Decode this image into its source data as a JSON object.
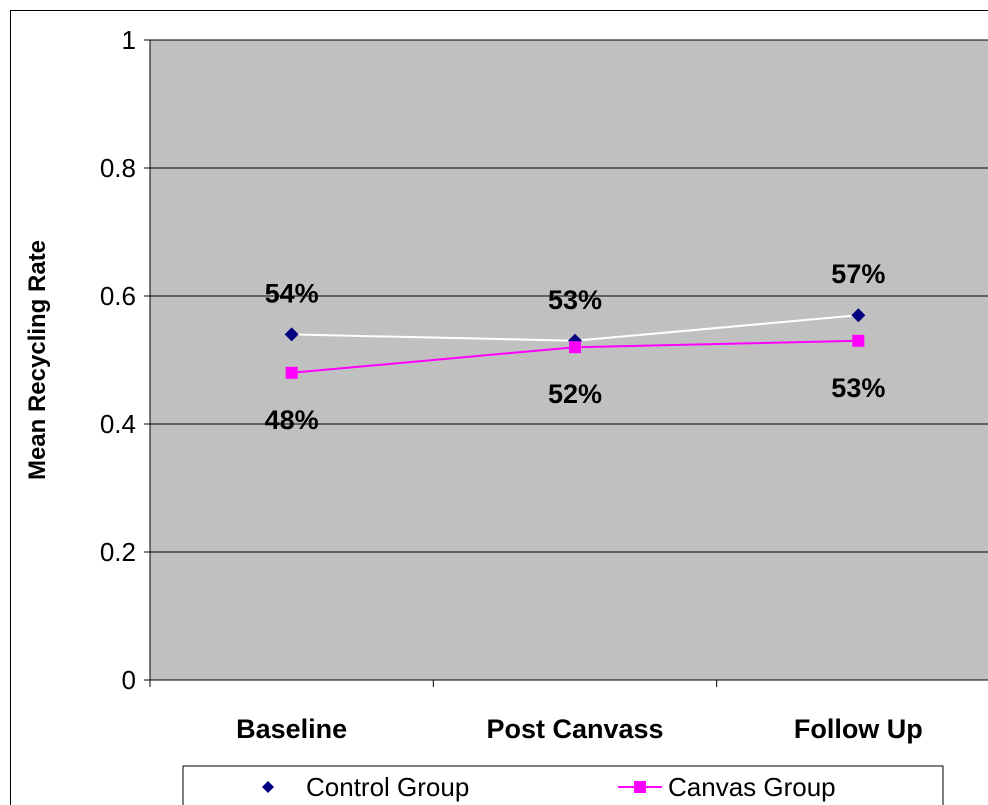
{
  "chart_data": {
    "type": "line",
    "title": "",
    "xlabel": "",
    "ylabel": "Mean Recycling Rate",
    "ylim": [
      0,
      1
    ],
    "yticks": [
      "0",
      "0.2",
      "0.4",
      "0.6",
      "0.8",
      "1"
    ],
    "ytick_values": [
      0,
      0.2,
      0.4,
      0.6,
      0.8,
      1
    ],
    "categories": [
      "Baseline",
      "Post Canvass",
      "Follow Up"
    ],
    "grid": true,
    "legend_position": "bottom",
    "series": [
      {
        "name": "Control Group",
        "values": [
          0.54,
          0.53,
          0.57
        ],
        "labels": [
          "54%",
          "53%",
          "57%"
        ],
        "line_color": "#ffffff",
        "marker_color": "#000080",
        "marker": "diamond",
        "label_position": "above"
      },
      {
        "name": "Canvas Group",
        "values": [
          0.48,
          0.52,
          0.53
        ],
        "labels": [
          "48%",
          "52%",
          "53%"
        ],
        "line_color": "#ff00ff",
        "marker_color": "#ff00ff",
        "marker": "square",
        "label_position": "below"
      }
    ],
    "plot_background": "#c0c0c0",
    "grid_color": "#000000"
  }
}
